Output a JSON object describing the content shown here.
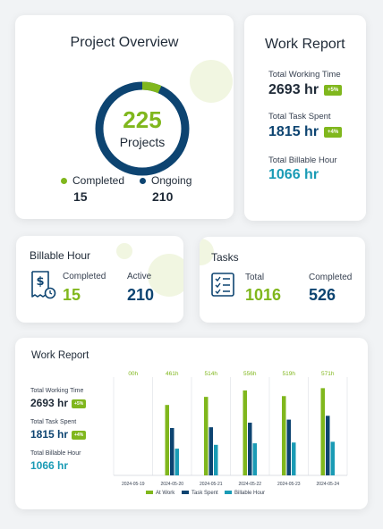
{
  "colors": {
    "green": "#80b71d",
    "navy": "#0d4471",
    "teal": "#1a9bb5",
    "text": "#1f2a37"
  },
  "overview": {
    "title": "Project Overview",
    "total": "225",
    "total_label": "Projects",
    "completed_label": "Completed",
    "completed_value": "15",
    "ongoing_label": "Ongoing",
    "ongoing_value": "210",
    "completed_count": 15,
    "ongoing_count": 210
  },
  "work_report": {
    "title": "Work Report",
    "working_label": "Total Working Time",
    "working_value": "2693 hr",
    "working_badge": "+5%",
    "task_label": "Total Task Spent",
    "task_value": "1815 hr",
    "task_badge": "+4%",
    "billable_label": "Total Billable Hour",
    "billable_value": "1066 hr"
  },
  "billable": {
    "title": "Billable Hour",
    "icon": "invoice-icon",
    "completed_label": "Completed",
    "completed_value": "15",
    "active_label": "Active",
    "active_value": "210"
  },
  "tasks": {
    "title": "Tasks",
    "icon": "checklist-icon",
    "total_label": "Total",
    "total_value": "1016",
    "completed_label": "Completed",
    "completed_value": "526"
  },
  "work_report_detail": {
    "title": "Work Report",
    "working_label": "Total Working Time",
    "working_value": "2693 hr",
    "working_badge": "+5%",
    "task_label": "Total Task Spent",
    "task_value": "1815 hr",
    "task_badge": "+4%",
    "billable_label": "Total Billable Hour",
    "billable_value": "1066 hr"
  },
  "chart_data": {
    "type": "bar",
    "categories": [
      "2024-05-19",
      "2024-05-20",
      "2024-05-21",
      "2024-05-22",
      "2024-05-23",
      "2024-05-24"
    ],
    "top_labels": [
      "00h",
      "461h",
      "514h",
      "556h",
      "519h",
      "571h"
    ],
    "series": [
      {
        "name": "At Work",
        "color": "#80b71d",
        "values": [
          0,
          461,
          514,
          556,
          519,
          571
        ]
      },
      {
        "name": "Task Spent",
        "color": "#0d4471",
        "values": [
          0,
          310,
          315,
          345,
          365,
          390
        ]
      },
      {
        "name": "Billable Hour",
        "color": "#1a9bb5",
        "values": [
          0,
          175,
          200,
          210,
          215,
          220
        ]
      }
    ],
    "ylim": [
      0,
      620
    ],
    "grid": "vertical",
    "legend": "bottom"
  }
}
